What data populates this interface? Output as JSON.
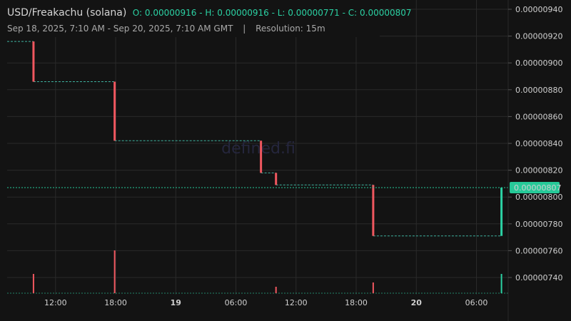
{
  "header": {
    "pair": "USD/Freakachu (solana)",
    "ohlc": "O: 0.00000916 - H: 0.00000916 - L: 0.00000771 - C: 0.00000807",
    "range": "Sep 18, 2025, 7:10 AM - Sep 20, 2025, 7:10 AM GMT",
    "separator": "|",
    "resolution": "Resolution: 15m"
  },
  "watermark": "defined.fi",
  "chart_data": {
    "type": "line",
    "line_style": "step",
    "xlabel": "",
    "ylabel": "",
    "x_ticks": [
      {
        "label": "12:00",
        "hour": 12,
        "bold": false
      },
      {
        "label": "18:00",
        "hour": 18,
        "bold": false
      },
      {
        "label": "19",
        "hour": 24,
        "bold": true
      },
      {
        "label": "06:00",
        "hour": 30,
        "bold": false
      },
      {
        "label": "12:00",
        "hour": 36,
        "bold": false
      },
      {
        "label": "18:00",
        "hour": 42,
        "bold": false
      },
      {
        "label": "20",
        "hour": 48,
        "bold": true
      },
      {
        "label": "06:00",
        "hour": 54,
        "bold": false
      }
    ],
    "y_ticks": [
      "0.00000940",
      "0.00000920",
      "0.00000900",
      "0.00000880",
      "0.00000860",
      "0.00000840",
      "0.00000820",
      "0.00000800",
      "0.00000780",
      "0.00000760",
      "0.00000740"
    ],
    "ylim": [
      7.3e-06,
      9.4e-06
    ],
    "current_price": "0.00000807",
    "colors": {
      "up": "#2bd1a3",
      "down": "#f0575f",
      "grid": "#2a2a2a",
      "background": "#131313",
      "price_tag": "#26c998"
    },
    "price_steps": [
      {
        "hour": 7.17,
        "price": 9.16e-06
      },
      {
        "hour": 9.8,
        "price": 8.86e-06
      },
      {
        "hour": 17.9,
        "price": 8.42e-06
      },
      {
        "hour": 32.5,
        "price": 8.18e-06
      },
      {
        "hour": 34.0,
        "price": 8.09e-06
      },
      {
        "hour": 43.7,
        "price": 7.71e-06
      },
      {
        "hour": 56.5,
        "price": 8.07e-06
      }
    ],
    "candles": [
      {
        "hour": 9.8,
        "open": 9.16e-06,
        "close": 8.86e-06,
        "direction": "down"
      },
      {
        "hour": 17.9,
        "open": 8.86e-06,
        "close": 8.42e-06,
        "direction": "down"
      },
      {
        "hour": 32.5,
        "open": 8.42e-06,
        "close": 8.18e-06,
        "direction": "down"
      },
      {
        "hour": 34.0,
        "open": 8.18e-06,
        "close": 8.09e-06,
        "direction": "down"
      },
      {
        "hour": 43.7,
        "open": 8.09e-06,
        "close": 7.71e-06,
        "direction": "down"
      },
      {
        "hour": 56.5,
        "open": 7.71e-06,
        "close": 8.07e-06,
        "direction": "up"
      }
    ],
    "volume": [
      {
        "hour": 9.8,
        "value": 0.45,
        "direction": "down"
      },
      {
        "hour": 17.9,
        "value": 1.0,
        "direction": "down"
      },
      {
        "hour": 34.0,
        "value": 0.15,
        "direction": "down"
      },
      {
        "hour": 43.7,
        "value": 0.25,
        "direction": "down"
      },
      {
        "hour": 56.5,
        "value": 0.45,
        "direction": "up"
      }
    ]
  }
}
